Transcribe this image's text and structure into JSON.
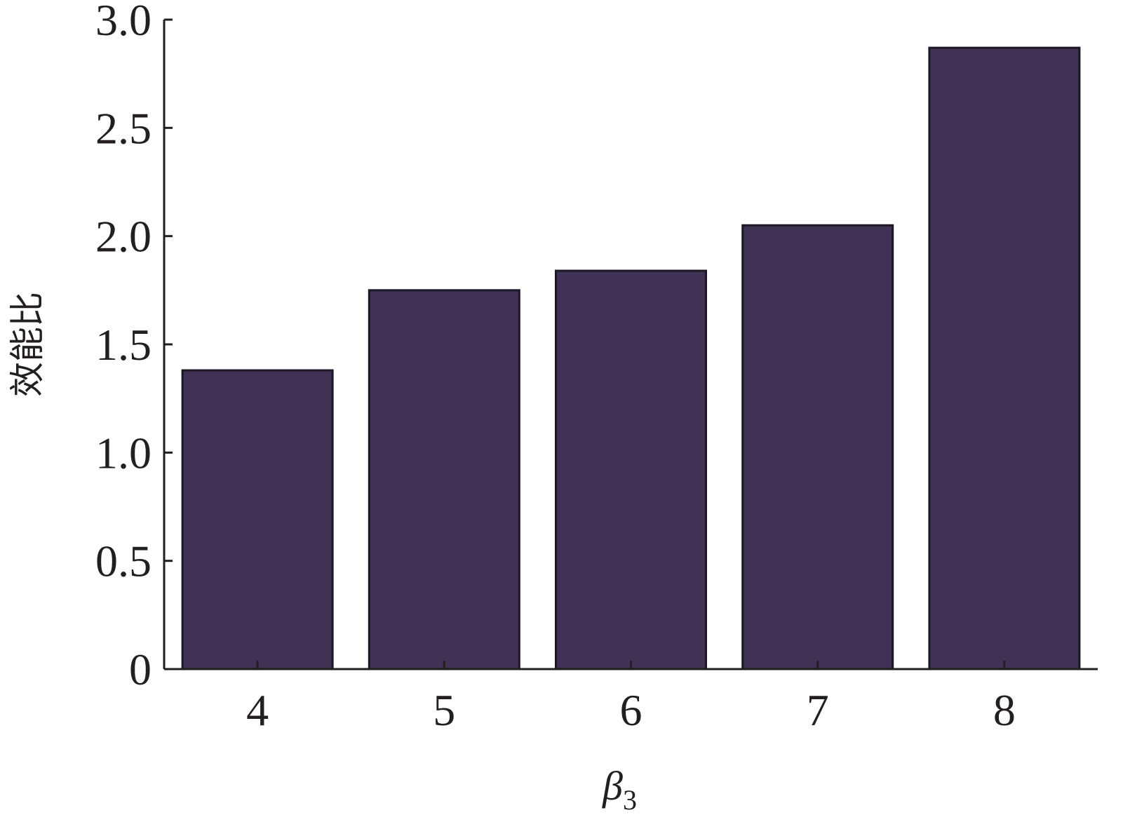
{
  "chart_data": {
    "type": "bar",
    "categories": [
      "4",
      "5",
      "6",
      "7",
      "8"
    ],
    "values": [
      1.38,
      1.75,
      1.84,
      2.05,
      2.87
    ],
    "title": "",
    "xlabel": "β",
    "xlabel_subscript": "3",
    "ylabel": "效能比",
    "ylim": [
      0,
      3.0
    ],
    "yticks": [
      "0",
      "0.5",
      "1.0",
      "1.5",
      "2.0",
      "2.5",
      "3.0"
    ],
    "grid": false,
    "legend": "none",
    "colors": {
      "bar_fill": "#3f3254",
      "bar_stroke": "#1c1724",
      "axis": "#231f20"
    }
  }
}
